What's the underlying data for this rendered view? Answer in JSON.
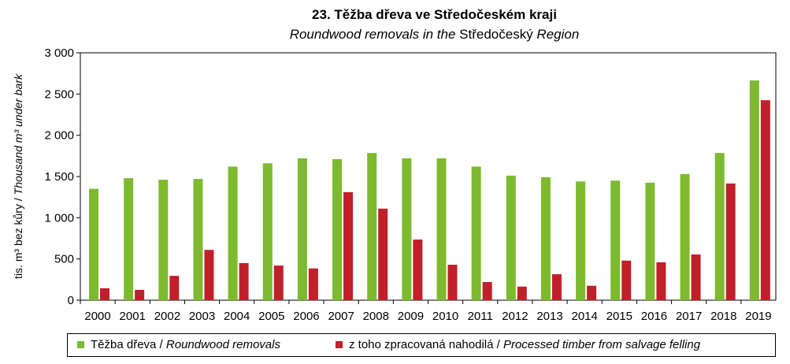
{
  "chart_data": {
    "type": "bar",
    "title": "23. Těžba dřeva ve Středočeském kraji",
    "subtitle_italic_1": "Roundwood removals in the ",
    "subtitle_normal": "Středočeský",
    "subtitle_italic_2": " Region",
    "ylabel_normal": "tis. m³ bez kůry / ",
    "ylabel_italic": "Thousand m³ under bark",
    "ylim": [
      0,
      3000
    ],
    "yticks": [
      0,
      500,
      1000,
      1500,
      2000,
      2500,
      3000
    ],
    "ytick_labels": [
      "0",
      "500",
      "1 000",
      "1 500",
      "2 000",
      "2 500",
      "3 000"
    ],
    "grid": false,
    "legend_position": "bottom",
    "categories": [
      "2000",
      "2001",
      "2002",
      "2003",
      "2004",
      "2005",
      "2006",
      "2007",
      "2008",
      "2009",
      "2010",
      "2011",
      "2012",
      "2013",
      "2014",
      "2015",
      "2016",
      "2017",
      "2018",
      "2019"
    ],
    "series": [
      {
        "name": "Těžba dřeva / ",
        "name_italic": "Roundwood removals",
        "color": "#7dba2e",
        "values": [
          1350,
          1480,
          1460,
          1470,
          1620,
          1660,
          1720,
          1710,
          1785,
          1720,
          1720,
          1620,
          1510,
          1490,
          1440,
          1450,
          1425,
          1530,
          1785,
          2665
        ]
      },
      {
        "name": "z toho zpracovaná nahodilá / ",
        "name_italic": "Processed timber from salvage felling",
        "color": "#c0202a",
        "values": [
          145,
          125,
          295,
          610,
          450,
          420,
          385,
          1310,
          1110,
          735,
          430,
          220,
          165,
          315,
          175,
          480,
          460,
          555,
          1415,
          2425
        ]
      }
    ]
  }
}
